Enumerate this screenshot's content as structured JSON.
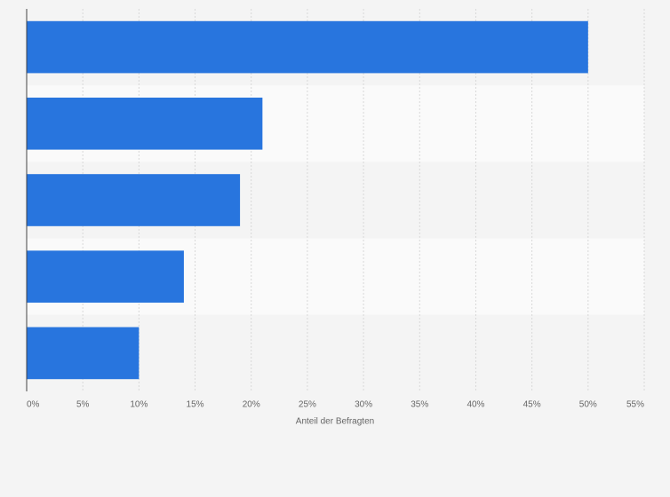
{
  "chart_data": {
    "type": "hbar",
    "categories": [
      null,
      null,
      null,
      null,
      null
    ],
    "values": [
      50,
      21,
      19,
      14,
      10
    ],
    "color": "#2875de",
    "xlabel": "Anteil der Befragten",
    "xlim": [
      0,
      55
    ],
    "xticks": [
      {
        "value": 0,
        "label": "0%"
      },
      {
        "value": 5,
        "label": "5%"
      },
      {
        "value": 10,
        "label": "10%"
      },
      {
        "value": 15,
        "label": "15%"
      },
      {
        "value": 20,
        "label": "20%"
      },
      {
        "value": 25,
        "label": "25%"
      },
      {
        "value": 30,
        "label": "30%"
      },
      {
        "value": 35,
        "label": "35%"
      },
      {
        "value": 40,
        "label": "40%"
      },
      {
        "value": 45,
        "label": "45%"
      },
      {
        "value": 50,
        "label": "50%"
      },
      {
        "value": 55,
        "label": "55%"
      }
    ],
    "grid": true
  }
}
